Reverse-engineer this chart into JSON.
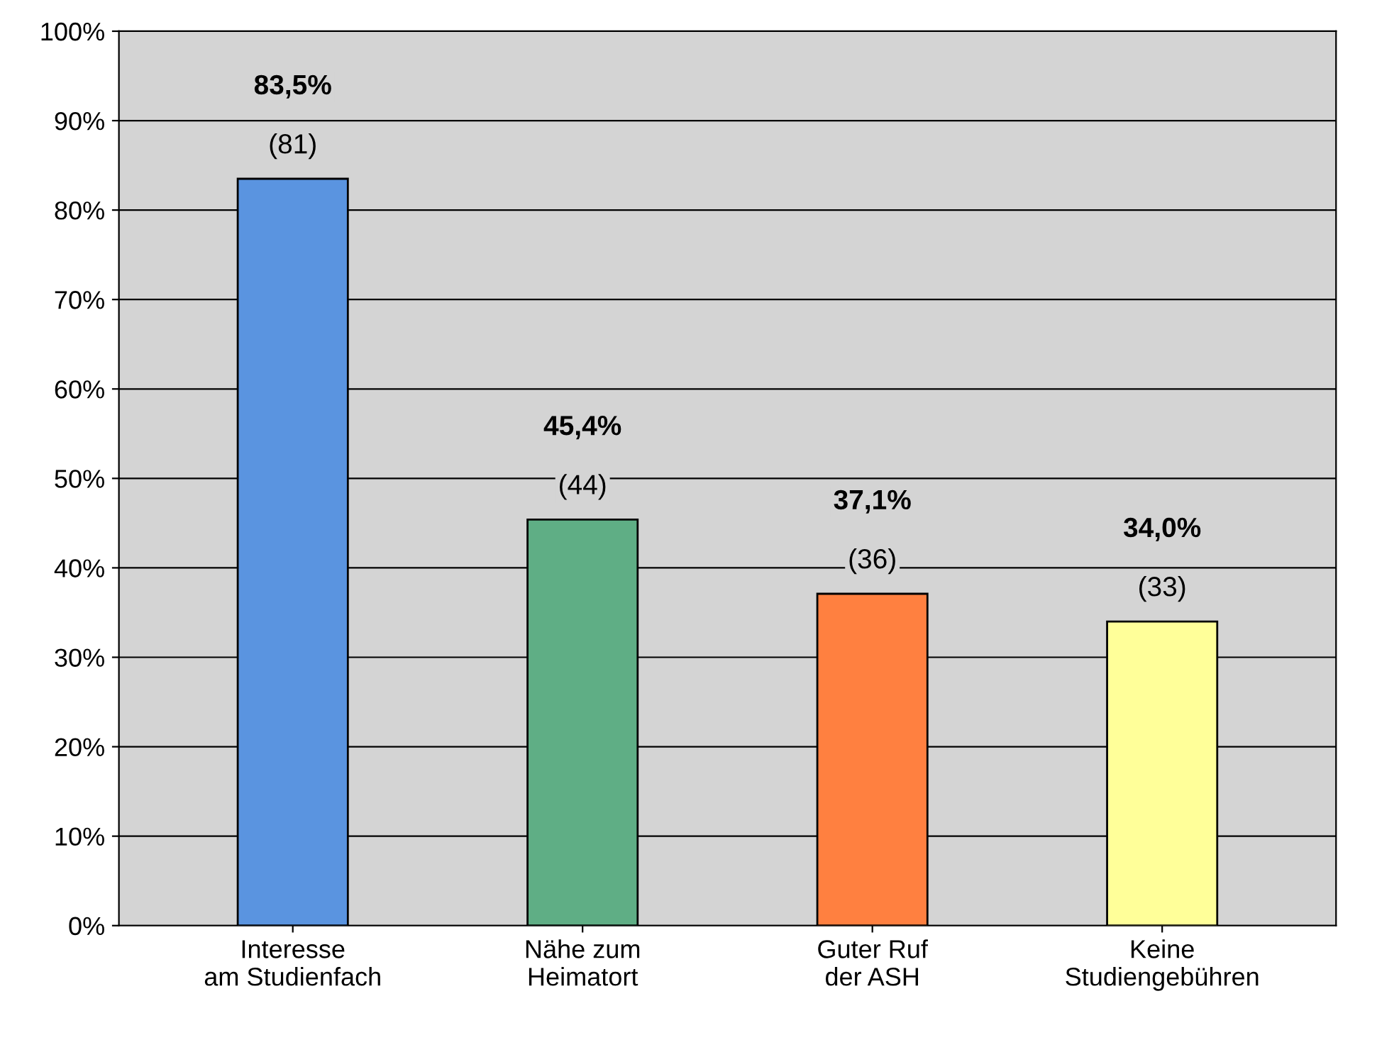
{
  "chart_data": {
    "type": "bar",
    "categories": [
      "Interesse\nam Studienfach",
      "Nähe zum\nHeimatort",
      "Guter Ruf\nder ASH",
      "Keine\nStudiengebühren"
    ],
    "values": [
      83.5,
      45.4,
      37.1,
      34.0
    ],
    "colors": [
      "#5a94e0",
      "#5fae85",
      "#ff8040",
      "#ffff99"
    ],
    "value_labels": [
      "83,5%\n(81)",
      "45,4%\n(44)",
      "37,1%\n(36)",
      "34,0%\n(33)"
    ],
    "ylim": [
      0,
      100
    ],
    "yticks": [
      {
        "value": 0,
        "label": "0%"
      },
      {
        "value": 10,
        "label": "10%"
      },
      {
        "value": 20,
        "label": "20%"
      },
      {
        "value": 30,
        "label": "30%"
      },
      {
        "value": 40,
        "label": "40%"
      },
      {
        "value": 50,
        "label": "50%"
      },
      {
        "value": 60,
        "label": "60%"
      },
      {
        "value": 70,
        "label": "70%"
      },
      {
        "value": 80,
        "label": "80%"
      },
      {
        "value": 90,
        "label": "90%"
      },
      {
        "value": 100,
        "label": "100%"
      }
    ],
    "grid": "y",
    "legend": false
  }
}
